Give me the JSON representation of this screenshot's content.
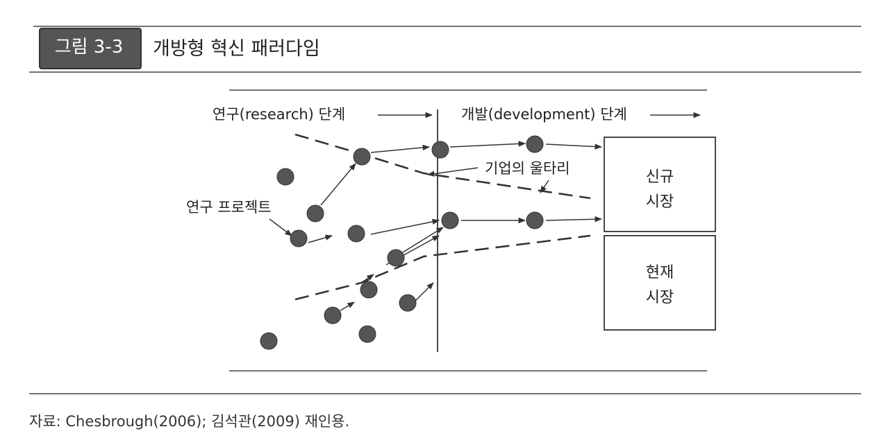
{
  "header": {
    "figure_number": "그림 3-3",
    "title": "개방형 혁신 패러다임"
  },
  "diagram": {
    "research_phase_label": "연구(research) 단계",
    "development_phase_label": "개발(development) 단계",
    "company_boundary_label": "기업의 울타리",
    "research_projects_label": "연구 프로젝트",
    "new_market_label_line1": "신규",
    "new_market_label_line2": "시장",
    "current_market_label_line1": "현재",
    "current_market_label_line2": "시장"
  },
  "footer": {
    "source": "자료: Chesbrough(2006); 김석관(2009) 재인용."
  },
  "colors": {
    "dot_fill": "#555555",
    "line": "#333333",
    "badge_fill": "#555555"
  }
}
